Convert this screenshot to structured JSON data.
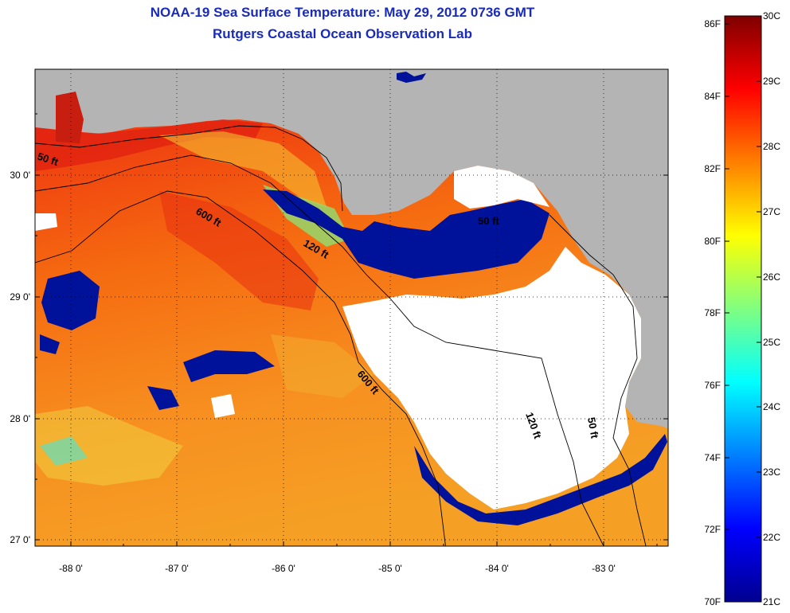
{
  "title": "NOAA-19 Sea Surface Temperature:  May 29, 2012 0736 GMT",
  "subtitle": "Rutgers Coastal Ocean Observation Lab",
  "map": {
    "lon_range": [
      -88.33,
      -82.5
    ],
    "lat_range": [
      26.95,
      30.85
    ],
    "lon_ticks": [
      "-88 0'",
      "-87 0'",
      "-86 0'",
      "-85 0'",
      "-84 0'",
      "-83 0'"
    ],
    "lat_ticks": [
      "30 0'",
      "29 0'",
      "28 0'",
      "27 0'"
    ],
    "grid": "dotted",
    "land_color": "#b4b4b4",
    "no_data_color": "#ffffff",
    "contour_labels": [
      "50 ft",
      "600 ft",
      "120 ft",
      "50 ft",
      "600 ft",
      "120 ft",
      "50 ft"
    ]
  },
  "colorbar": {
    "fahrenheit_labels": [
      "86F",
      "84F",
      "82F",
      "80F",
      "78F",
      "76F",
      "74F",
      "72F",
      "70F"
    ],
    "celsius_labels": [
      "30C",
      "29C",
      "28C",
      "27C",
      "26C",
      "25C",
      "24C",
      "23C",
      "22C",
      "21C"
    ],
    "colors": {
      "hot": "#7f0000",
      "red": "#ff1a00",
      "orange": "#ff7f00",
      "yellow": "#ffff00",
      "cyan": "#00ffff",
      "blue": "#0000ff",
      "cold": "#00008f"
    }
  }
}
